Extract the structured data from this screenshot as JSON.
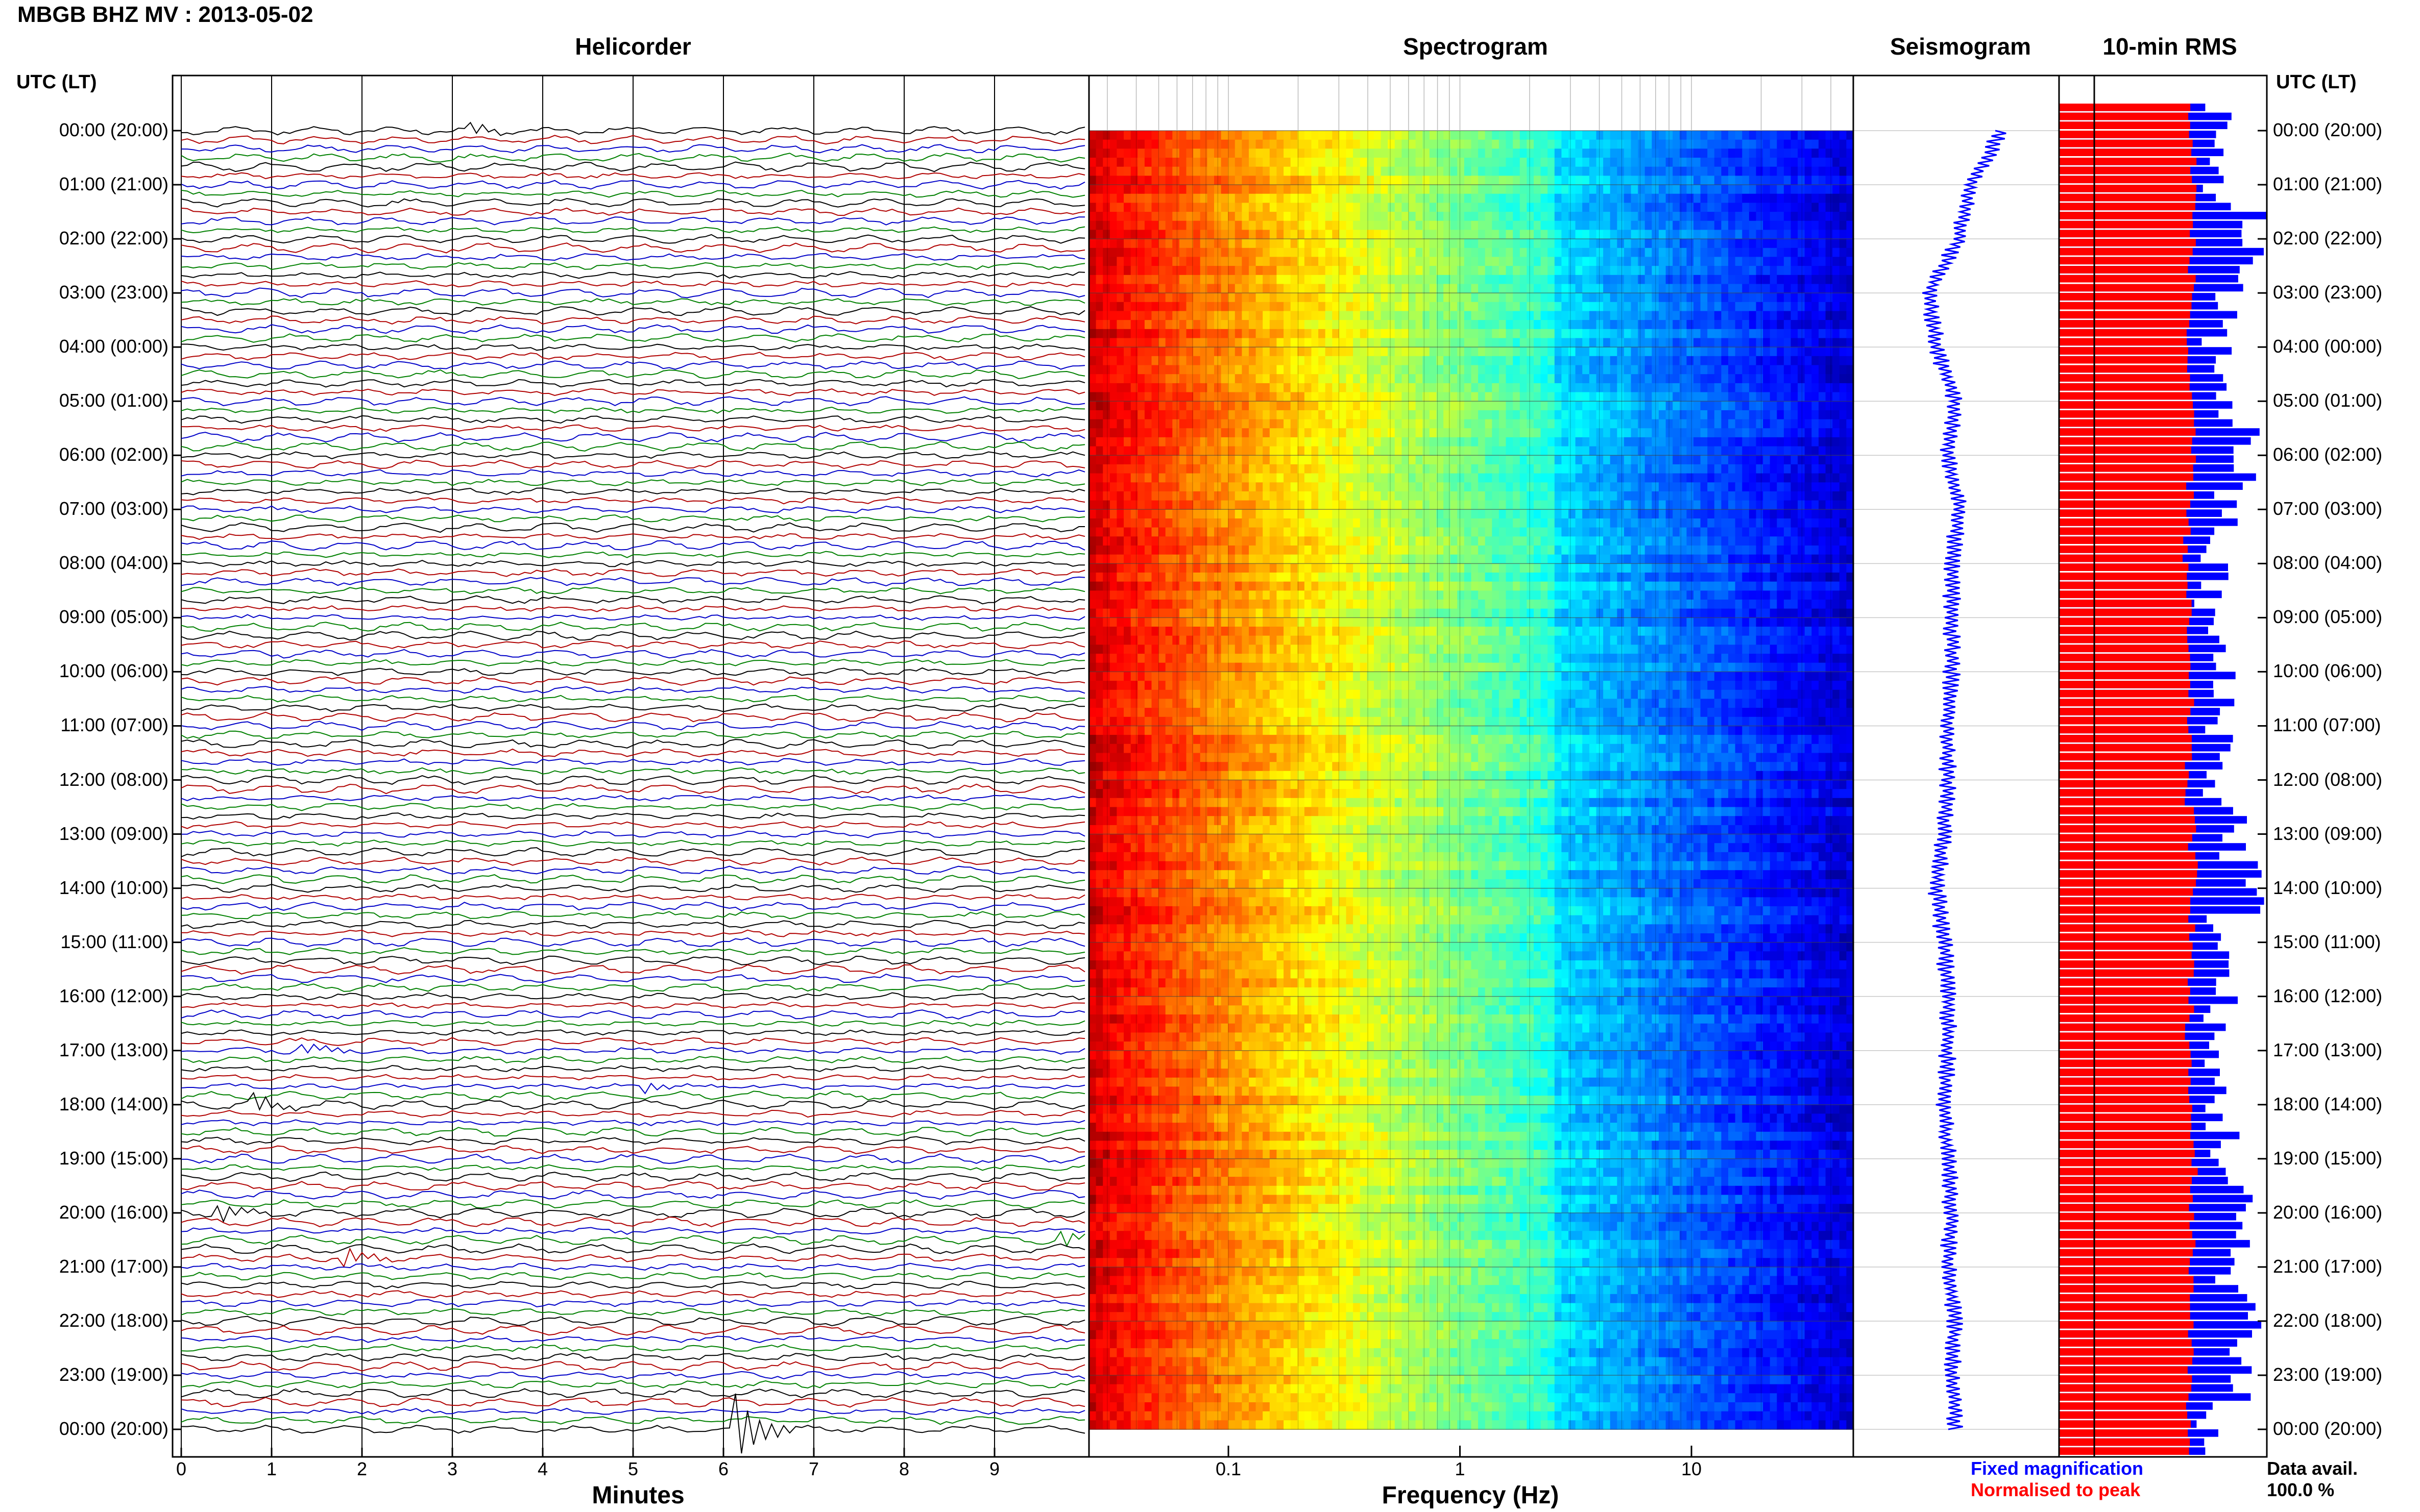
{
  "title": "MBGB BHZ MV : 2013-05-02",
  "panels": {
    "helicorder": "Helicorder",
    "spectrogram": "Spectrogram",
    "seismogram": "Seismogram",
    "rms": "10-min RMS"
  },
  "time_axis_label": "UTC (LT)",
  "time_ticks": [
    "00:00 (20:00)",
    "01:00 (21:00)",
    "02:00 (22:00)",
    "03:00 (23:00)",
    "04:00 (00:00)",
    "05:00 (01:00)",
    "06:00 (02:00)",
    "07:00 (03:00)",
    "08:00 (04:00)",
    "09:00 (05:00)",
    "10:00 (06:00)",
    "11:00 (07:00)",
    "12:00 (08:00)",
    "13:00 (09:00)",
    "14:00 (10:00)",
    "15:00 (11:00)",
    "16:00 (12:00)",
    "17:00 (13:00)",
    "18:00 (14:00)",
    "19:00 (15:00)",
    "20:00 (16:00)",
    "21:00 (17:00)",
    "22:00 (18:00)",
    "23:00 (19:00)",
    "00:00 (20:00)"
  ],
  "legend": {
    "fixed": "Fixed magnification",
    "normalised": "Normalised to peak",
    "fixed_color": "#0000ff",
    "normalised_color": "#ff0000"
  },
  "data_avail": {
    "label": "Data avail.",
    "value": "100.0 %"
  },
  "chart_data": [
    {
      "type": "line",
      "panel": "helicorder",
      "xlabel": "Minutes",
      "xticks": [
        0,
        1,
        2,
        3,
        4,
        5,
        6,
        7,
        8,
        9
      ],
      "xlim": [
        0,
        10
      ],
      "trace_colors": [
        "#000000",
        "#b00000",
        "#0000c8",
        "#008000"
      ],
      "traces_per_hour": 6,
      "hours": 24,
      "events": [
        {
          "hour": 0.03,
          "minute": 3.2,
          "amp": 2
        },
        {
          "hour": 17.0,
          "minute": 1.3,
          "amp": 2
        },
        {
          "hour": 17.7,
          "minute": 5.1,
          "amp": 2
        },
        {
          "hour": 18.0,
          "minute": 0.8,
          "amp": 3
        },
        {
          "hour": 20.0,
          "minute": 0.4,
          "amp": 3
        },
        {
          "hour": 20.5,
          "minute": 9.7,
          "amp": 3
        },
        {
          "hour": 20.8,
          "minute": 1.8,
          "amp": 3
        },
        {
          "hour": 24.0,
          "minute": 6.1,
          "amp": 12
        }
      ]
    },
    {
      "type": "heatmap",
      "panel": "spectrogram",
      "xlabel": "Frequency (Hz)",
      "xscale": "log",
      "xlim": [
        0.025,
        50
      ],
      "xticks": [
        0.1,
        1,
        10
      ],
      "xtick_labels": [
        "0.1",
        "1",
        "10"
      ],
      "colormap": "jet",
      "ylim": [
        "00:00",
        "24:00"
      ]
    },
    {
      "type": "line",
      "panel": "seismogram",
      "color": "#0000ff",
      "offsets": [
        0.6,
        0.2,
        0.05,
        -0.35,
        -0.25,
        0.0,
        -0.1,
        0.05,
        -0.05,
        -0.05,
        -0.05,
        -0.1,
        -0.1,
        -0.15,
        -0.25,
        -0.15,
        -0.1,
        -0.1,
        -0.15,
        -0.1,
        -0.05,
        -0.1,
        0.0,
        -0.05,
        0.0
      ]
    },
    {
      "type": "bar",
      "panel": "rms",
      "orientation": "horizontal",
      "series": [
        {
          "name": "Fixed magnification",
          "color": "#0000ff",
          "values": [
            0.74,
            0.78,
            0.92,
            0.8,
            0.76,
            0.82,
            0.89,
            0.8,
            0.74,
            0.72,
            0.77,
            0.79,
            0.76,
            0.85,
            0.91,
            0.79,
            0.78,
            0.72,
            0.77,
            0.8,
            0.86,
            0.84,
            0.92,
            0.88,
            0.71
          ]
        },
        {
          "name": "Normalised to peak",
          "color": "#ff0000",
          "values": [
            0.63,
            0.65,
            0.64,
            0.64,
            0.62,
            0.63,
            0.64,
            0.63,
            0.61,
            0.62,
            0.62,
            0.63,
            0.62,
            0.64,
            0.65,
            0.64,
            0.63,
            0.62,
            0.63,
            0.65,
            0.64,
            0.64,
            0.64,
            0.63,
            0.62
          ]
        }
      ]
    }
  ]
}
